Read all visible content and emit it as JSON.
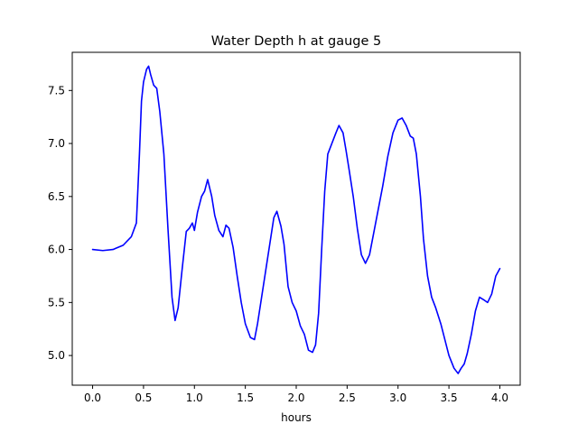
{
  "chart_data": {
    "type": "line",
    "title": "Water Depth h at gauge 5",
    "xlabel": "hours",
    "ylabel": "",
    "xlim": [
      -0.2,
      4.2
    ],
    "ylim": [
      4.72,
      7.86
    ],
    "xticks": [
      0.0,
      0.5,
      1.0,
      1.5,
      2.0,
      2.5,
      3.0,
      3.5,
      4.0
    ],
    "xtick_labels": [
      "0.0",
      "0.5",
      "1.0",
      "1.5",
      "2.0",
      "2.5",
      "3.0",
      "3.5",
      "4.0"
    ],
    "yticks": [
      5.0,
      5.5,
      6.0,
      6.5,
      7.0,
      7.5
    ],
    "ytick_labels": [
      "5.0",
      "5.5",
      "6.0",
      "6.5",
      "7.0",
      "7.5"
    ],
    "grid": false,
    "series": [
      {
        "color": "#0000ff",
        "x": [
          0.0,
          0.1,
          0.2,
          0.3,
          0.38,
          0.43,
          0.46,
          0.48,
          0.5,
          0.53,
          0.55,
          0.57,
          0.6,
          0.63,
          0.66,
          0.7,
          0.74,
          0.78,
          0.81,
          0.84,
          0.88,
          0.92,
          0.95,
          0.98,
          1.0,
          1.03,
          1.07,
          1.1,
          1.13,
          1.17,
          1.2,
          1.24,
          1.28,
          1.31,
          1.34,
          1.38,
          1.42,
          1.46,
          1.5,
          1.55,
          1.59,
          1.62,
          1.66,
          1.7,
          1.74,
          1.78,
          1.81,
          1.85,
          1.88,
          1.92,
          1.96,
          2.0,
          2.04,
          2.08,
          2.12,
          2.16,
          2.19,
          2.22,
          2.25,
          2.28,
          2.31,
          2.35,
          2.39,
          2.42,
          2.46,
          2.49,
          2.52,
          2.56,
          2.6,
          2.64,
          2.68,
          2.72,
          2.76,
          2.8,
          2.85,
          2.9,
          2.95,
          3.0,
          3.04,
          3.08,
          3.12,
          3.15,
          3.18,
          3.22,
          3.25,
          3.29,
          3.33,
          3.37,
          3.42,
          3.46,
          3.5,
          3.55,
          3.59,
          3.62,
          3.65,
          3.68,
          3.72,
          3.76,
          3.8,
          3.85,
          3.88,
          3.92,
          3.96,
          4.0
        ],
        "values": [
          6.0,
          5.99,
          6.0,
          6.04,
          6.12,
          6.25,
          6.9,
          7.4,
          7.58,
          7.7,
          7.73,
          7.65,
          7.55,
          7.52,
          7.3,
          6.9,
          6.2,
          5.55,
          5.33,
          5.45,
          5.82,
          6.17,
          6.2,
          6.25,
          6.18,
          6.35,
          6.5,
          6.55,
          6.66,
          6.5,
          6.32,
          6.18,
          6.12,
          6.23,
          6.2,
          6.02,
          5.75,
          5.5,
          5.3,
          5.17,
          5.15,
          5.3,
          5.55,
          5.8,
          6.05,
          6.3,
          6.36,
          6.22,
          6.05,
          5.65,
          5.5,
          5.42,
          5.28,
          5.2,
          5.05,
          5.03,
          5.1,
          5.4,
          6.0,
          6.55,
          6.9,
          7.0,
          7.1,
          7.17,
          7.1,
          6.93,
          6.75,
          6.5,
          6.2,
          5.95,
          5.87,
          5.95,
          6.15,
          6.35,
          6.6,
          6.88,
          7.1,
          7.22,
          7.24,
          7.17,
          7.07,
          7.05,
          6.9,
          6.5,
          6.1,
          5.75,
          5.55,
          5.45,
          5.3,
          5.15,
          5.0,
          4.88,
          4.83,
          4.88,
          4.92,
          5.02,
          5.2,
          5.42,
          5.55,
          5.52,
          5.5,
          5.58,
          5.75,
          5.82
        ]
      }
    ]
  }
}
